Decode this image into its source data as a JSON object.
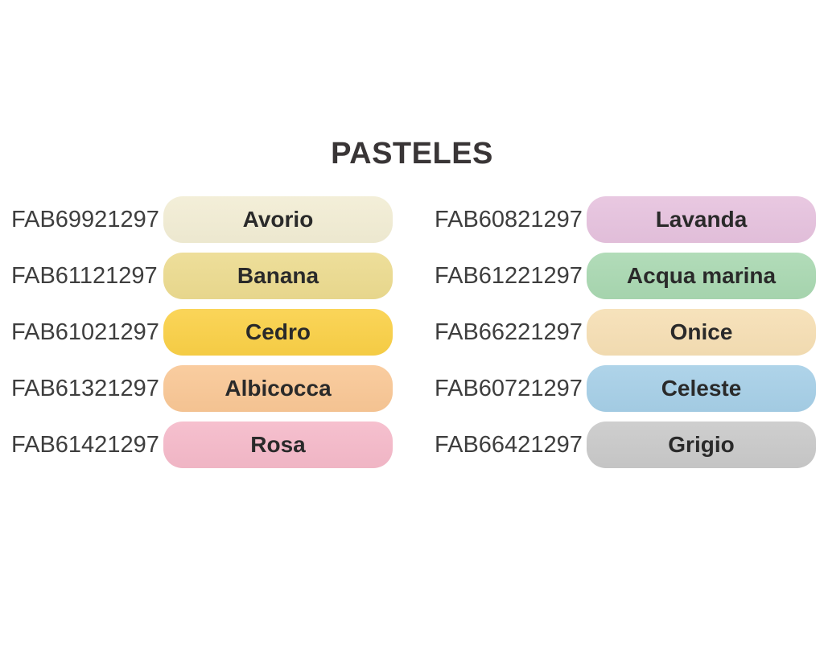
{
  "page": {
    "title": "PASTELES"
  },
  "palette": {
    "title_color": "#393536",
    "code_text_color": "#3e3e3e",
    "swatch_label_color": "#2a2a2a",
    "background": "#ffffff"
  },
  "columns": [
    {
      "rows": [
        {
          "code": "FAB69921297",
          "name": "Avorio",
          "color": "#f2edd4"
        },
        {
          "code": "FAB61121297",
          "name": "Banana",
          "color": "#ecdb8f"
        },
        {
          "code": "FAB61021297",
          "name": "Cedro",
          "color": "#fad046"
        },
        {
          "code": "FAB61321297",
          "name": "Albicocca",
          "color": "#f9c795"
        },
        {
          "code": "FAB61421297",
          "name": "Rosa",
          "color": "#f5b9c9"
        }
      ]
    },
    {
      "rows": [
        {
          "code": "FAB60821297",
          "name": "Lavanda",
          "color": "#e6c2de"
        },
        {
          "code": "FAB61221297",
          "name": "Acqua marina",
          "color": "#a9d8b1"
        },
        {
          "code": "FAB66221297",
          "name": "Onice",
          "color": "#f6dfb4"
        },
        {
          "code": "FAB60721297",
          "name": "Celeste",
          "color": "#a6cfe7"
        },
        {
          "code": "FAB66421297",
          "name": "Grigio",
          "color": "#c9c9c9"
        }
      ]
    }
  ]
}
